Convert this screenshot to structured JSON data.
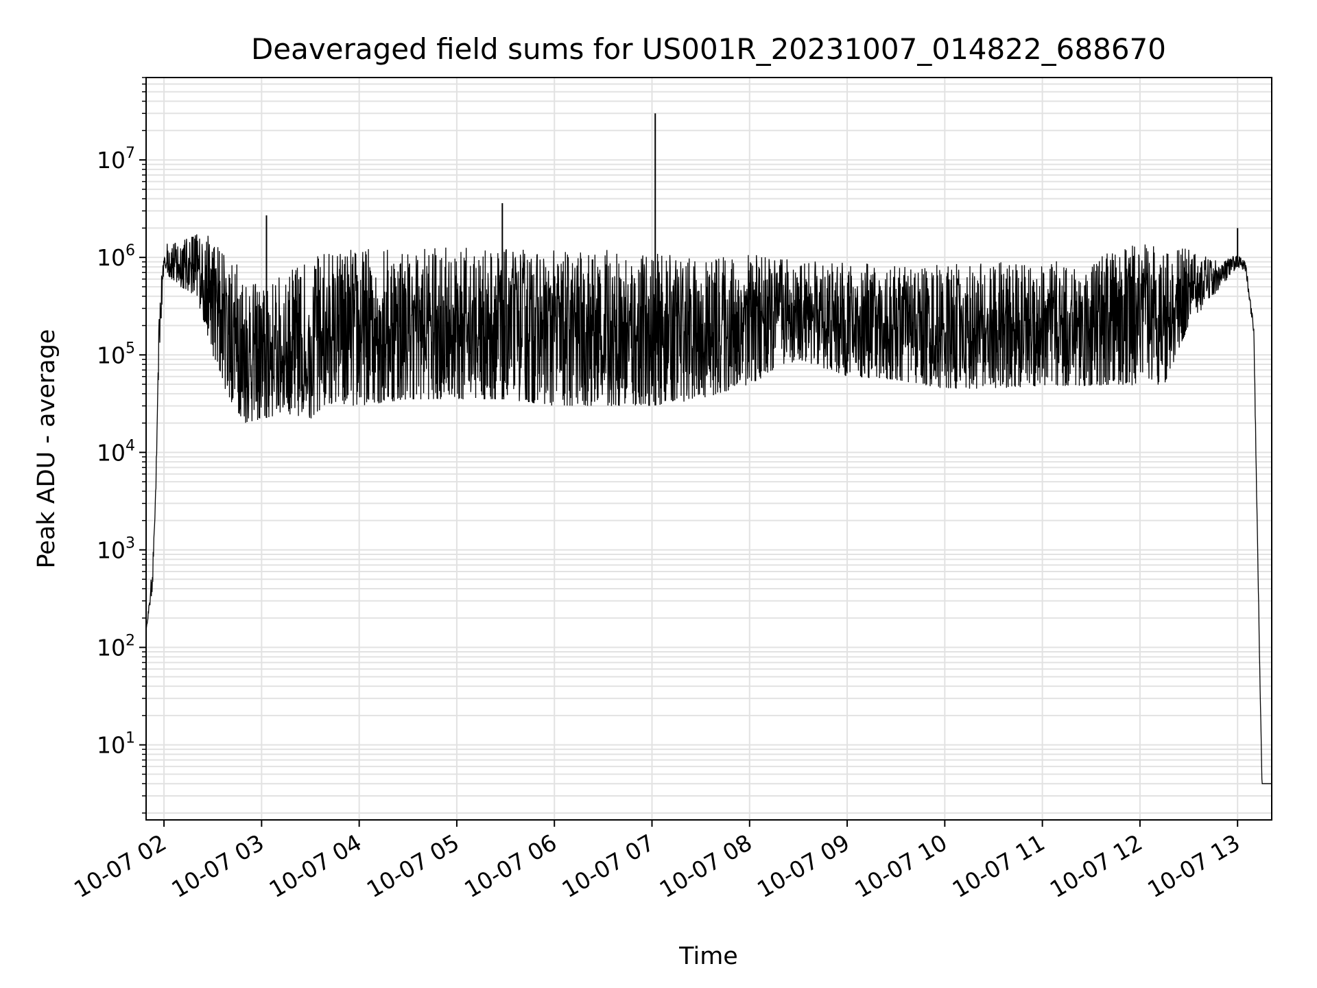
{
  "chart_data": {
    "type": "line",
    "title": "Deaveraged field sums for US001R_20231007_014822_688670",
    "xlabel": "Time",
    "ylabel": "Peak ADU - average",
    "y_scale": "log",
    "ylim": [
      1.7,
      70000000
    ],
    "xlim": [
      "10-07 01:49",
      "10-07 13:21"
    ],
    "grid": "major and minor, light gray",
    "line_color": "#000000",
    "x_ticks": [
      {
        "label": "10-07 02",
        "time": "10-07 02:00"
      },
      {
        "label": "10-07 03",
        "time": "10-07 03:00"
      },
      {
        "label": "10-07 04",
        "time": "10-07 04:00"
      },
      {
        "label": "10-07 05",
        "time": "10-07 05:00"
      },
      {
        "label": "10-07 06",
        "time": "10-07 06:00"
      },
      {
        "label": "10-07 07",
        "time": "10-07 07:00"
      },
      {
        "label": "10-07 08",
        "time": "10-07 08:00"
      },
      {
        "label": "10-07 09",
        "time": "10-07 09:00"
      },
      {
        "label": "10-07 10",
        "time": "10-07 10:00"
      },
      {
        "label": "10-07 11",
        "time": "10-07 11:00"
      },
      {
        "label": "10-07 12",
        "time": "10-07 12:00"
      },
      {
        "label": "10-07 13",
        "time": "10-07 13:00"
      }
    ],
    "y_ticks": [
      {
        "base": "10",
        "exp": "1",
        "value": 10
      },
      {
        "base": "10",
        "exp": "2",
        "value": 100
      },
      {
        "base": "10",
        "exp": "3",
        "value": 1000
      },
      {
        "base": "10",
        "exp": "4",
        "value": 10000
      },
      {
        "base": "10",
        "exp": "5",
        "value": 100000
      },
      {
        "base": "10",
        "exp": "6",
        "value": 1000000
      },
      {
        "base": "10",
        "exp": "7",
        "value": 10000000
      }
    ],
    "series": [
      {
        "upper_envelope": [
          [
            "10-07 01:49",
            150
          ],
          [
            "10-07 01:51",
            300
          ],
          [
            "10-07 01:53",
            800
          ],
          [
            "10-07 01:55",
            3000
          ],
          [
            "10-07 01:57",
            300000
          ],
          [
            "10-07 02:00",
            1400000
          ],
          [
            "10-07 02:10",
            1500000
          ],
          [
            "10-07 02:20",
            1900000
          ],
          [
            "10-07 02:30",
            1600000
          ],
          [
            "10-07 02:40",
            1200000
          ],
          [
            "10-07 02:50",
            700000
          ],
          [
            "10-07 03:00",
            500000
          ],
          [
            "10-07 03:15",
            700000
          ],
          [
            "10-07 03:30",
            1000000
          ],
          [
            "10-07 03:40",
            1200000
          ],
          [
            "10-07 04:00",
            1250000
          ],
          [
            "10-07 04:30",
            1300000
          ],
          [
            "10-07 05:00",
            1300000
          ],
          [
            "10-07 05:30",
            1250000
          ],
          [
            "10-07 06:00",
            1200000
          ],
          [
            "10-07 06:30",
            1200000
          ],
          [
            "10-07 07:00",
            1100000
          ],
          [
            "10-07 07:30",
            1000000
          ],
          [
            "10-07 08:00",
            1100000
          ],
          [
            "10-07 08:30",
            950000
          ],
          [
            "10-07 09:00",
            900000
          ],
          [
            "10-07 09:30",
            850000
          ],
          [
            "10-07 10:00",
            850000
          ],
          [
            "10-07 10:30",
            900000
          ],
          [
            "10-07 11:00",
            900000
          ],
          [
            "10-07 11:30",
            950000
          ],
          [
            "10-07 11:45",
            1200000
          ],
          [
            "10-07 12:00",
            1400000
          ],
          [
            "10-07 12:15",
            1500000
          ],
          [
            "10-07 12:30",
            1200000
          ],
          [
            "10-07 12:50",
            900000
          ],
          [
            "10-07 13:00",
            1100000
          ],
          [
            "10-07 13:05",
            900000
          ],
          [
            "10-07 13:10",
            200000
          ],
          [
            "10-07 13:13",
            300
          ],
          [
            "10-07 13:15",
            4
          ],
          [
            "10-07 13:21",
            4
          ]
        ],
        "lower_envelope": [
          [
            "10-07 01:49",
            150
          ],
          [
            "10-07 01:53",
            400
          ],
          [
            "10-07 01:57",
            100000
          ],
          [
            "10-07 02:00",
            700000
          ],
          [
            "10-07 02:10",
            500000
          ],
          [
            "10-07 02:20",
            400000
          ],
          [
            "10-07 02:30",
            100000
          ],
          [
            "10-07 02:40",
            35000
          ],
          [
            "10-07 02:50",
            20000
          ],
          [
            "10-07 03:00",
            22000
          ],
          [
            "10-07 03:15",
            25000
          ],
          [
            "10-07 03:30",
            22000
          ],
          [
            "10-07 03:40",
            28000
          ],
          [
            "10-07 04:00",
            30000
          ],
          [
            "10-07 04:30",
            35000
          ],
          [
            "10-07 05:00",
            35000
          ],
          [
            "10-07 05:30",
            35000
          ],
          [
            "10-07 06:00",
            30000
          ],
          [
            "10-07 06:30",
            30000
          ],
          [
            "10-07 07:00",
            30000
          ],
          [
            "10-07 07:30",
            35000
          ],
          [
            "10-07 08:00",
            50000
          ],
          [
            "10-07 08:30",
            90000
          ],
          [
            "10-07 09:00",
            60000
          ],
          [
            "10-07 09:30",
            55000
          ],
          [
            "10-07 10:00",
            45000
          ],
          [
            "10-07 10:30",
            45000
          ],
          [
            "10-07 11:00",
            48000
          ],
          [
            "10-07 11:30",
            48000
          ],
          [
            "10-07 11:45",
            50000
          ],
          [
            "10-07 12:00",
            48000
          ],
          [
            "10-07 12:15",
            50000
          ],
          [
            "10-07 12:30",
            200000
          ],
          [
            "10-07 12:50",
            500000
          ],
          [
            "10-07 13:00",
            800000
          ],
          [
            "10-07 13:05",
            700000
          ],
          [
            "10-07 13:10",
            150000
          ],
          [
            "10-07 13:13",
            200
          ],
          [
            "10-07 13:15",
            4
          ],
          [
            "10-07 13:21",
            4
          ]
        ],
        "spikes": [
          [
            "10-07 03:03",
            2700000
          ],
          [
            "10-07 05:28",
            3600000
          ],
          [
            "10-07 07:02",
            30000000
          ],
          [
            "10-07 13:00",
            2000000
          ]
        ]
      }
    ]
  }
}
